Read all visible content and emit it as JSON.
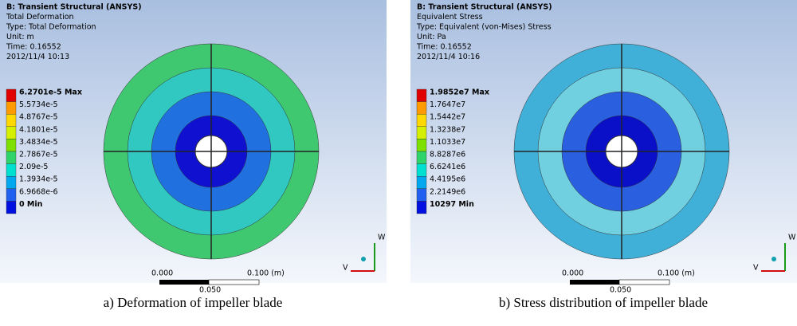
{
  "panels": [
    {
      "header": [
        "B: Transient Structural (ANSYS)",
        "Total Deformation",
        "Type: Total Deformation",
        "Unit: m",
        "Time: 0.16552",
        "2012/11/4 10:13"
      ],
      "legend": [
        "6.2701e-5 Max",
        "5.5734e-5",
        "4.8767e-5",
        "4.1801e-5",
        "3.4834e-5",
        "2.7867e-5",
        "2.09e-5",
        "1.3934e-5",
        "6.9668e-6",
        "0 Min"
      ],
      "scale": {
        "start": "0.000",
        "end": "0.100 (m)",
        "mid": "0.050"
      },
      "axes": {
        "w": "W",
        "v": "V"
      },
      "caption": "a) Deformation of impeller blade"
    },
    {
      "header": [
        "B: Transient Structural (ANSYS)",
        "Equivalent Stress",
        "Type: Equivalent (von-Mises) Stress",
        "Unit: Pa",
        "Time: 0.16552",
        "2012/11/4 10:16"
      ],
      "legend": [
        "1.9852e7 Max",
        "1.7647e7",
        "1.5442e7",
        "1.3238e7",
        "1.1033e7",
        "8.8287e6",
        "6.6241e6",
        "4.4195e6",
        "2.2149e6",
        "10297 Min"
      ],
      "scale": {
        "start": "0.000",
        "end": "0.100 (m)",
        "mid": "0.050"
      },
      "axes": {
        "w": "W",
        "v": "V"
      },
      "caption": "b) Stress distribution of impeller blade"
    }
  ]
}
